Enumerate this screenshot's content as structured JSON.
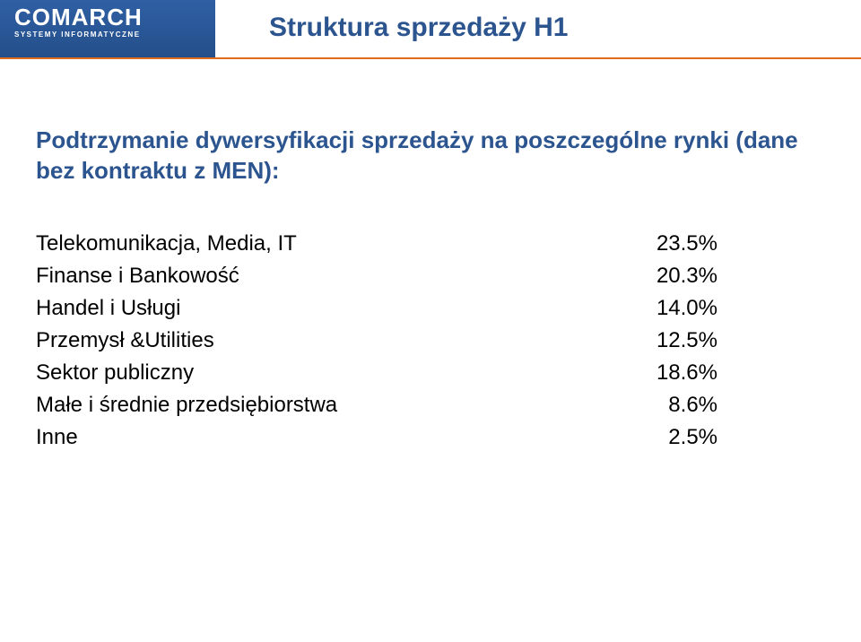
{
  "header": {
    "logo_main": "COMARCH",
    "logo_sub": "SYSTEMY INFORMATYCZNE",
    "title": "Struktura sprzedaży H1",
    "bar_color": "#2c5590",
    "underline_color": "#e06b1c"
  },
  "body": {
    "lead": "Podtrzymanie dywersyfikacji sprzedaży na poszczególne rynki (dane bez kontraktu z MEN):",
    "rows": [
      {
        "label": "Telekomunikacja, Media, IT",
        "value": "23.5%"
      },
      {
        "label": "Finanse i Bankowość",
        "value": "20.3%"
      },
      {
        "label": "Handel i Usługi",
        "value": "14.0%"
      },
      {
        "label": "Przemysł &Utilities",
        "value": "12.5%"
      },
      {
        "label": "Sektor publiczny",
        "value": "18.6%"
      },
      {
        "label": "Małe i średnie przedsiębiorstwa",
        "value": "8.6%"
      },
      {
        "label": "Inne",
        "value": "2.5%"
      }
    ]
  },
  "style": {
    "title_color": "#2c5590",
    "lead_color": "#2c5590",
    "row_color": "#000000",
    "background": "#ffffff",
    "title_fontsize": 30,
    "lead_fontsize": 26,
    "row_fontsize": 24
  }
}
